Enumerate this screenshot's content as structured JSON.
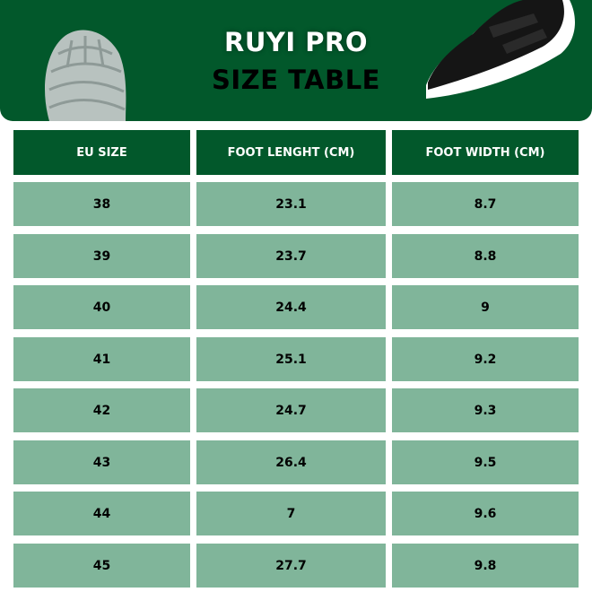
{
  "header": {
    "title": "RUYI PRO",
    "subtitle": "SIZE TABLE"
  },
  "colors": {
    "banner": "#02582b",
    "row": "#80b59a"
  },
  "table": {
    "columns": [
      "EU SIZE",
      "FOOT LENGHT (CM)",
      "FOOT WIDTH (CM)"
    ],
    "rows": [
      [
        "38",
        "23.1",
        "8.7"
      ],
      [
        "39",
        "23.7",
        "8.8"
      ],
      [
        "40",
        "24.4",
        "9"
      ],
      [
        "41",
        "25.1",
        "9.2"
      ],
      [
        "42",
        "24.7",
        "9.3"
      ],
      [
        "43",
        "26.4",
        "9.5"
      ],
      [
        "44",
        "7",
        "9.6"
      ],
      [
        "45",
        "27.7",
        "9.8"
      ]
    ]
  }
}
